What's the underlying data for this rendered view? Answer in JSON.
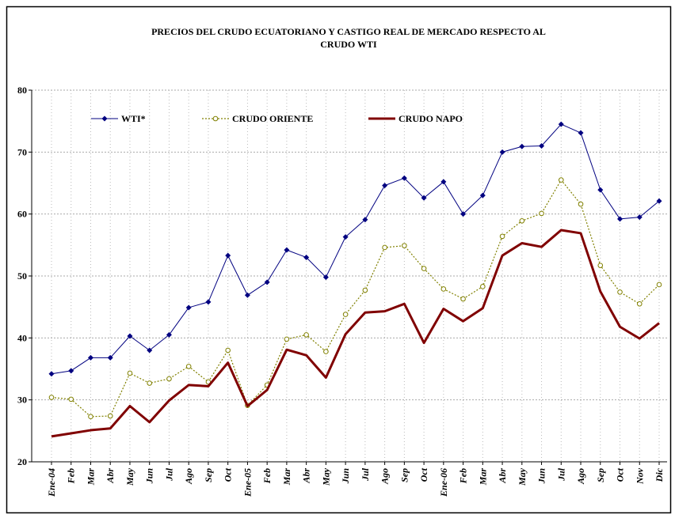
{
  "chart_data": {
    "type": "line",
    "title": [
      "PRECIOS DEL CRUDO ECUATORIANO Y CASTIGO REAL DE MERCADO RESPECTO AL",
      "CRUDO WTI"
    ],
    "categories": [
      "Ene-04",
      "Feb",
      "Mar",
      "Abr",
      "May",
      "Jun",
      "Jul",
      "Ago",
      "Sep",
      "Oct",
      "Ene-05",
      "Feb",
      "Mar",
      "Abr",
      "May",
      "Jun",
      "Jul",
      "Ago",
      "Sep",
      "Oct",
      "Ene-06",
      "Feb",
      "Mar",
      "Abr",
      "May",
      "Jun",
      "Jul",
      "Ago",
      "Sep",
      "Oct",
      "Nov",
      "Dic"
    ],
    "series": [
      {
        "name": "WTI*",
        "color": "#000080",
        "marker": "diamond",
        "line_style": "solid",
        "values": [
          34.2,
          34.7,
          36.8,
          36.8,
          40.3,
          38.0,
          40.5,
          44.9,
          45.8,
          53.3,
          46.9,
          49.0,
          54.2,
          53.0,
          49.8,
          56.3,
          59.1,
          64.6,
          65.8,
          62.6,
          65.2,
          60.0,
          63.0,
          70.0,
          70.9,
          71.0,
          74.5,
          73.1,
          63.9,
          59.2,
          59.5,
          62.1
        ]
      },
      {
        "name": "CRUDO ORIENTE",
        "color": "#808000",
        "marker": "circle",
        "line_style": "dotted",
        "values": [
          30.4,
          30.1,
          27.3,
          27.4,
          34.3,
          32.7,
          33.4,
          35.4,
          32.9,
          38.0,
          29.1,
          32.4,
          39.8,
          40.5,
          37.8,
          43.8,
          47.7,
          54.6,
          54.9,
          51.2,
          47.9,
          46.3,
          48.3,
          56.4,
          58.9,
          60.1,
          65.5,
          61.6,
          51.7,
          47.4,
          45.5,
          48.6
        ]
      },
      {
        "name": "CRUDO NAPO",
        "color": "#800000",
        "marker": "none",
        "line_style": "thick",
        "values": [
          24.1,
          24.6,
          25.1,
          25.4,
          29.0,
          26.4,
          29.9,
          32.4,
          32.2,
          36.0,
          29.0,
          31.6,
          38.1,
          37.2,
          33.6,
          40.6,
          44.1,
          44.3,
          45.5,
          39.2,
          44.7,
          42.7,
          44.8,
          53.3,
          55.3,
          54.7,
          57.4,
          56.9,
          47.5,
          41.8,
          39.9,
          42.4
        ]
      }
    ],
    "ylim": [
      20,
      80
    ],
    "yticks": [
      20,
      30,
      40,
      50,
      60,
      70,
      80
    ],
    "grid": true,
    "legend": "top"
  }
}
